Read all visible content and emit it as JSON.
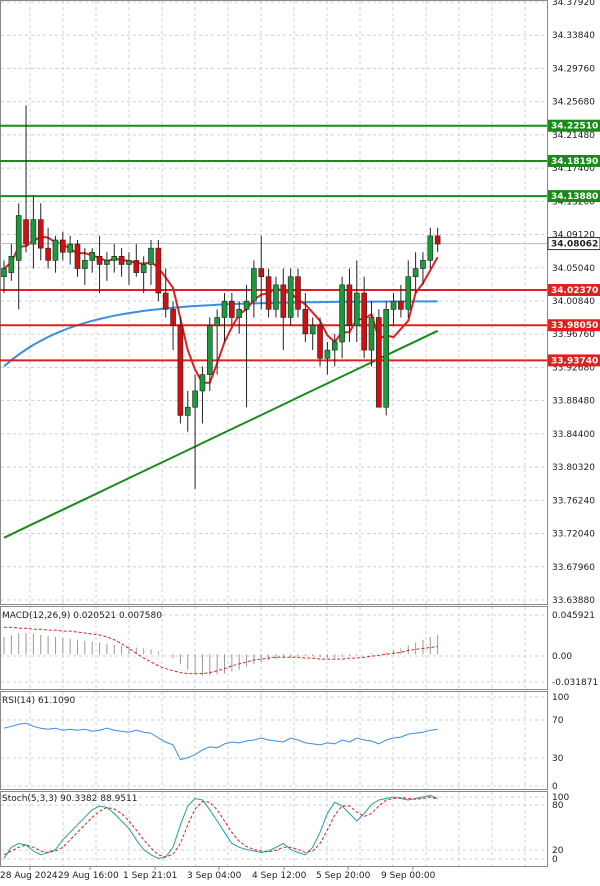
{
  "chart_data": [
    {
      "type": "candlestick",
      "panel": "price",
      "y_ticks": [
        "34.37920",
        "34.33840",
        "34.29760",
        "34.25680",
        "34.21480",
        "34.17400",
        "34.13200",
        "34.09120",
        "34.05040",
        "34.00840",
        "33.96760",
        "33.92680",
        "33.88480",
        "33.84400",
        "33.80320",
        "33.76240",
        "33.72040",
        "33.67960",
        "33.63880"
      ],
      "last_price": "34.08062",
      "resistance_levels": [
        "34.22510",
        "34.18190",
        "34.13880"
      ],
      "support_levels": [
        "34.02370",
        "33.98050",
        "33.93740"
      ],
      "resistance_values": [
        34.2251,
        34.1819,
        34.1388
      ],
      "support_values": [
        34.0237,
        33.9805,
        33.9374
      ],
      "last_price_value": 34.08062,
      "ylim": [
        33.6388,
        34.3792
      ],
      "candles": [
        [
          34.04,
          34.06,
          34.02,
          34.05
        ],
        [
          34.045,
          34.08,
          34.035,
          34.065
        ],
        [
          34.06,
          34.13,
          34.0,
          34.115
        ],
        [
          34.11,
          34.25,
          34.07,
          34.08
        ],
        [
          34.08,
          34.14,
          34.05,
          34.11
        ],
        [
          34.11,
          34.13,
          34.06,
          34.075
        ],
        [
          34.075,
          34.1,
          34.05,
          34.06
        ],
        [
          34.06,
          34.09,
          34.045,
          34.085
        ],
        [
          34.085,
          34.095,
          34.06,
          34.07
        ],
        [
          34.07,
          34.09,
          34.055,
          34.08
        ],
        [
          34.08,
          34.085,
          34.04,
          34.05
        ],
        [
          34.05,
          34.075,
          34.03,
          34.06
        ],
        [
          34.06,
          34.075,
          34.045,
          34.07
        ],
        [
          34.065,
          34.09,
          34.02,
          34.055
        ],
        [
          34.055,
          34.07,
          34.035,
          34.06
        ],
        [
          34.06,
          34.08,
          34.045,
          34.065
        ],
        [
          34.065,
          34.075,
          34.04,
          34.055
        ],
        [
          34.055,
          34.07,
          34.03,
          34.06
        ],
        [
          34.06,
          34.08,
          34.04,
          34.045
        ],
        [
          34.045,
          34.065,
          34.02,
          34.055
        ],
        [
          34.055,
          34.085,
          34.03,
          34.075
        ],
        [
          34.075,
          34.085,
          34.01,
          34.02
        ],
        [
          34.02,
          34.05,
          33.99,
          34.0
        ],
        [
          34.0,
          34.01,
          33.95,
          33.98
        ],
        [
          33.98,
          33.99,
          33.86,
          33.87
        ],
        [
          33.87,
          33.9,
          33.85,
          33.88
        ],
        [
          33.88,
          33.92,
          33.78,
          33.9
        ],
        [
          33.9,
          33.93,
          33.86,
          33.92
        ],
        [
          33.92,
          33.99,
          33.9,
          33.98
        ],
        [
          33.98,
          34.0,
          33.92,
          33.99
        ],
        [
          33.99,
          34.02,
          33.96,
          34.01
        ],
        [
          34.01,
          34.02,
          33.98,
          33.99
        ],
        [
          33.99,
          34.01,
          33.97,
          34.0
        ],
        [
          34.0,
          34.03,
          33.88,
          34.01
        ],
        [
          34.01,
          34.06,
          33.99,
          34.05
        ],
        [
          34.05,
          34.09,
          34.0,
          34.04
        ],
        [
          34.04,
          34.05,
          33.99,
          34.0
        ],
        [
          34.0,
          34.04,
          33.99,
          34.03
        ],
        [
          34.03,
          34.05,
          33.95,
          33.99
        ],
        [
          33.99,
          34.05,
          33.98,
          34.04
        ],
        [
          34.04,
          34.05,
          33.99,
          34.0
        ],
        [
          34.0,
          34.02,
          33.96,
          33.97
        ],
        [
          33.97,
          33.99,
          33.95,
          33.98
        ],
        [
          33.98,
          33.99,
          33.93,
          33.94
        ],
        [
          33.94,
          33.96,
          33.92,
          33.95
        ],
        [
          33.95,
          33.97,
          33.93,
          33.96
        ],
        [
          33.96,
          34.04,
          33.94,
          34.03
        ],
        [
          34.03,
          34.05,
          33.96,
          33.98
        ],
        [
          33.98,
          34.06,
          33.96,
          34.02
        ],
        [
          34.02,
          34.04,
          33.94,
          33.95
        ],
        [
          33.95,
          34.01,
          33.93,
          33.99
        ],
        [
          33.99,
          34.0,
          33.88,
          33.88
        ],
        [
          33.88,
          34.01,
          33.87,
          34.0
        ],
        [
          34.0,
          34.02,
          33.98,
          34.01
        ],
        [
          34.01,
          34.03,
          33.99,
          34.0
        ],
        [
          34.0,
          34.06,
          33.99,
          34.04
        ],
        [
          34.04,
          34.07,
          34.02,
          34.05
        ],
        [
          34.05,
          34.07,
          34.03,
          34.06
        ],
        [
          34.06,
          34.1,
          34.05,
          34.09
        ],
        [
          34.09,
          34.1,
          34.07,
          34.08
        ]
      ],
      "x_labels": [
        "28 Aug 2024",
        "29 Aug 16:00",
        "1 Sep 21:01",
        "3 Sep 04:00",
        "4 Sep 12:00",
        "5 Sep 20:00",
        "9 Sep 00:00"
      ]
    },
    {
      "type": "histogram",
      "panel": "macd",
      "label": "MACD(12,26,9) 0.020521 0.007580",
      "y_ticks": [
        "0.045921",
        "0.00",
        "-0.031871"
      ],
      "ylim": [
        -0.036,
        0.05
      ],
      "histogram_values": [
        0.018,
        0.02,
        0.022,
        0.022,
        0.021,
        0.02,
        0.019,
        0.018,
        0.017,
        0.016,
        0.015,
        0.014,
        0.013,
        0.012,
        0.011,
        0.01,
        0.009,
        0.008,
        0.007,
        0.006,
        0.005,
        0.003,
        0.0,
        -0.004,
        -0.01,
        -0.016,
        -0.02,
        -0.022,
        -0.022,
        -0.021,
        -0.02,
        -0.018,
        -0.016,
        -0.013,
        -0.01,
        -0.008,
        -0.006,
        -0.005,
        -0.004,
        -0.003,
        -0.002,
        -0.002,
        -0.002,
        -0.003,
        -0.004,
        -0.004,
        -0.003,
        -0.002,
        -0.001,
        0.0,
        0.001,
        0.0,
        0.002,
        0.004,
        0.006,
        0.009,
        0.012,
        0.015,
        0.018,
        0.02
      ],
      "signal_values": [
        0.028,
        0.028,
        0.027,
        0.027,
        0.026,
        0.026,
        0.025,
        0.025,
        0.024,
        0.024,
        0.023,
        0.022,
        0.021,
        0.02,
        0.018,
        0.015,
        0.011,
        0.006,
        0.001,
        -0.004,
        -0.008,
        -0.012,
        -0.015,
        -0.017,
        -0.019,
        -0.02,
        -0.02,
        -0.02,
        -0.019,
        -0.017,
        -0.015,
        -0.012,
        -0.01,
        -0.008,
        -0.006,
        -0.005,
        -0.004,
        -0.003,
        -0.003,
        -0.003,
        -0.003,
        -0.004,
        -0.004,
        -0.005,
        -0.005,
        -0.005,
        -0.005,
        -0.004,
        -0.004,
        -0.003,
        -0.002,
        -0.001,
        0.0,
        0.001,
        0.002,
        0.004,
        0.005,
        0.006,
        0.007,
        0.008
      ]
    },
    {
      "type": "line",
      "panel": "rsi",
      "label": "RSI(14) 61.1090",
      "y_ticks": [
        "100",
        "70",
        "30",
        "0"
      ],
      "ylim": [
        0,
        100
      ],
      "values": [
        62,
        64,
        66,
        67,
        64,
        62,
        61,
        62,
        60,
        61,
        60,
        61,
        59,
        60,
        62,
        60,
        59,
        58,
        60,
        58,
        57,
        52,
        48,
        45,
        30,
        32,
        35,
        40,
        43,
        42,
        46,
        48,
        47,
        49,
        50,
        52,
        50,
        49,
        48,
        52,
        50,
        47,
        46,
        45,
        47,
        46,
        50,
        48,
        52,
        50,
        49,
        46,
        50,
        52,
        53,
        56,
        57,
        58,
        60,
        61
      ]
    },
    {
      "type": "line",
      "panel": "stoch",
      "label": "Stoch(5,3,3) 90.3382 88.9511",
      "y_ticks": [
        "100",
        "80",
        "20",
        "0"
      ],
      "ylim": [
        0,
        100
      ],
      "k_values": [
        10,
        25,
        30,
        28,
        20,
        15,
        18,
        22,
        35,
        45,
        55,
        65,
        75,
        80,
        78,
        70,
        60,
        50,
        35,
        22,
        15,
        10,
        12,
        25,
        55,
        80,
        90,
        88,
        75,
        60,
        45,
        30,
        25,
        22,
        20,
        18,
        20,
        25,
        30,
        22,
        18,
        15,
        25,
        45,
        70,
        85,
        80,
        70,
        60,
        70,
        82,
        88,
        90,
        92,
        90,
        88,
        90,
        92,
        94,
        90
      ],
      "d_values": [
        15,
        20,
        25,
        28,
        25,
        20,
        18,
        20,
        25,
        35,
        45,
        55,
        65,
        73,
        78,
        76,
        70,
        60,
        48,
        35,
        24,
        15,
        12,
        16,
        30,
        55,
        76,
        86,
        85,
        75,
        60,
        45,
        33,
        26,
        22,
        20,
        19,
        21,
        25,
        25,
        22,
        18,
        20,
        30,
        48,
        68,
        80,
        80,
        72,
        66,
        70,
        80,
        88,
        90,
        91,
        90,
        89,
        90,
        92,
        89
      ]
    }
  ]
}
